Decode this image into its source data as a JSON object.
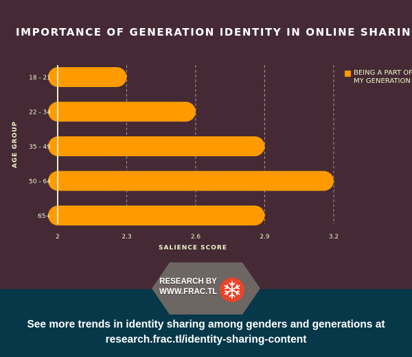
{
  "title": "Importance of Generation Identity in Online Sharing",
  "colors": {
    "background": "#452a36",
    "bar": "#ff9b00",
    "text": "#eaf3c2",
    "footer": "#063849",
    "badge": "#6d6662",
    "logo": "#e8452c"
  },
  "chart_data": {
    "type": "bar",
    "orientation": "horizontal",
    "categories": [
      "18 - 21",
      "22 - 34",
      "35 - 49",
      "50 - 64",
      "65+"
    ],
    "series": [
      {
        "name": "Being a part of my generation",
        "values": [
          2.3,
          2.6,
          2.9,
          3.2,
          2.9
        ]
      }
    ],
    "xlabel": "Salience score",
    "ylabel": "Age group",
    "xlim": [
      2,
      3.2
    ],
    "xticks": [
      "2",
      "2.3",
      "2.6",
      "2.9",
      "3.2"
    ],
    "grid": true,
    "legend_position": "top-right"
  },
  "legend": {
    "icon": "square-swatch",
    "label": "Being a part of my generation"
  },
  "badge": {
    "line1": "RESEARCH BY",
    "line2": "WWW.FRAC.TL",
    "logo_icon": "snowflake-icon"
  },
  "footer": {
    "text": "See more trends in identity sharing among genders and generations at",
    "link": "research.frac.tl/identity-sharing-content"
  }
}
